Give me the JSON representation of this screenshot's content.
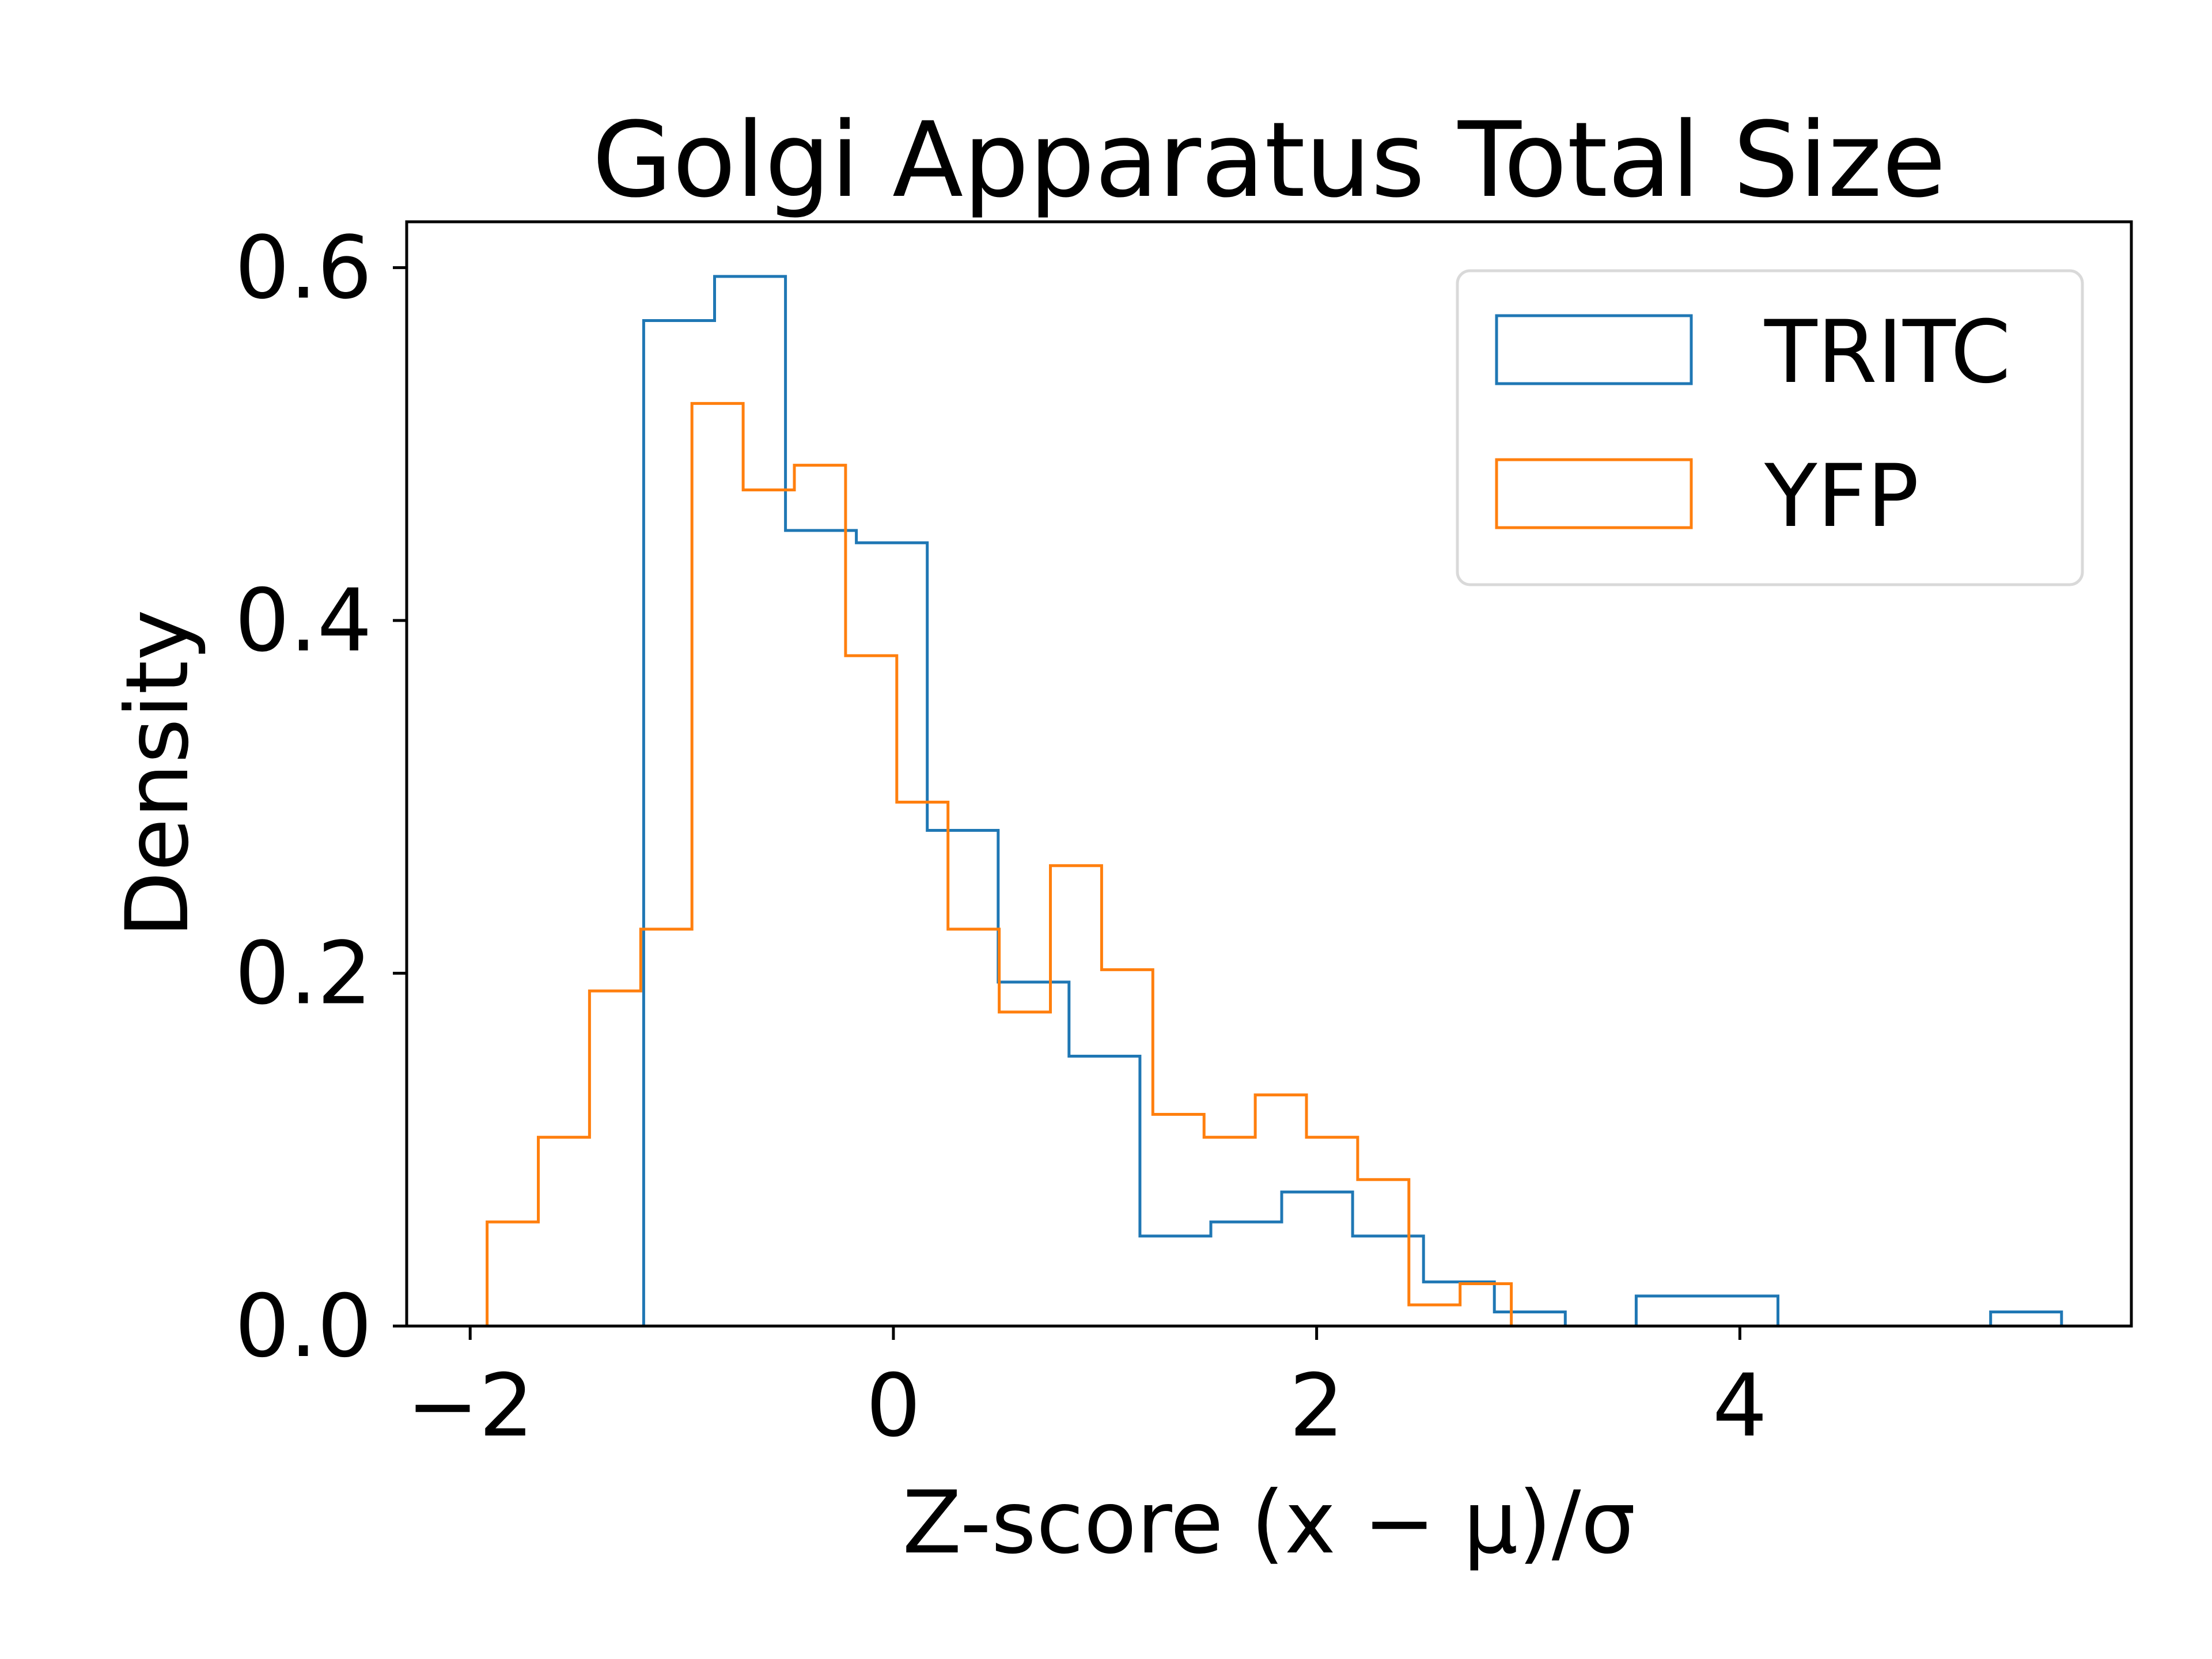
{
  "chart_data": {
    "type": "histogram",
    "title": "Golgi Apparatus Total Size",
    "xlabel": "Z-score (x − μ)/σ",
    "ylabel": "Density",
    "xlim": [
      -2.3,
      5.85
    ],
    "ylim": [
      0.0,
      0.626
    ],
    "xticks": [
      -2,
      0,
      2,
      4
    ],
    "xtick_labels": [
      "−2",
      "0",
      "2",
      "4"
    ],
    "yticks": [
      0.0,
      0.2,
      0.4,
      0.6
    ],
    "ytick_labels": [
      "0.0",
      "0.2",
      "0.4",
      "0.6"
    ],
    "grid": false,
    "legend_position": "top-right",
    "series": [
      {
        "name": "TRITC",
        "color": "#1f77b4",
        "bin_edges": [
          -1.18,
          -0.845,
          -0.51,
          -0.175,
          0.16,
          0.495,
          0.83,
          1.165,
          1.5,
          1.835,
          2.17,
          2.505,
          2.84,
          3.175,
          3.51,
          3.845,
          4.18,
          4.515,
          4.85,
          5.185,
          5.52
        ],
        "density": [
          0.57,
          0.595,
          0.451,
          0.444,
          0.281,
          0.195,
          0.153,
          0.051,
          0.059,
          0.076,
          0.051,
          0.025,
          0.008,
          0.0,
          0.017,
          0.017,
          0.0,
          0.0,
          0.0,
          0.008
        ]
      },
      {
        "name": "YFP",
        "color": "#ff7f0e",
        "bin_edges": [
          -1.92,
          -1.678,
          -1.436,
          -1.194,
          -0.952,
          -0.71,
          -0.468,
          -0.226,
          0.016,
          0.258,
          0.5,
          0.742,
          0.984,
          1.226,
          1.468,
          1.71,
          1.952,
          2.194,
          2.436,
          2.678,
          2.92
        ],
        "density": [
          0.059,
          0.107,
          0.19,
          0.225,
          0.523,
          0.474,
          0.488,
          0.38,
          0.297,
          0.225,
          0.178,
          0.261,
          0.202,
          0.12,
          0.107,
          0.131,
          0.107,
          0.083,
          0.012,
          0.024
        ]
      }
    ]
  }
}
